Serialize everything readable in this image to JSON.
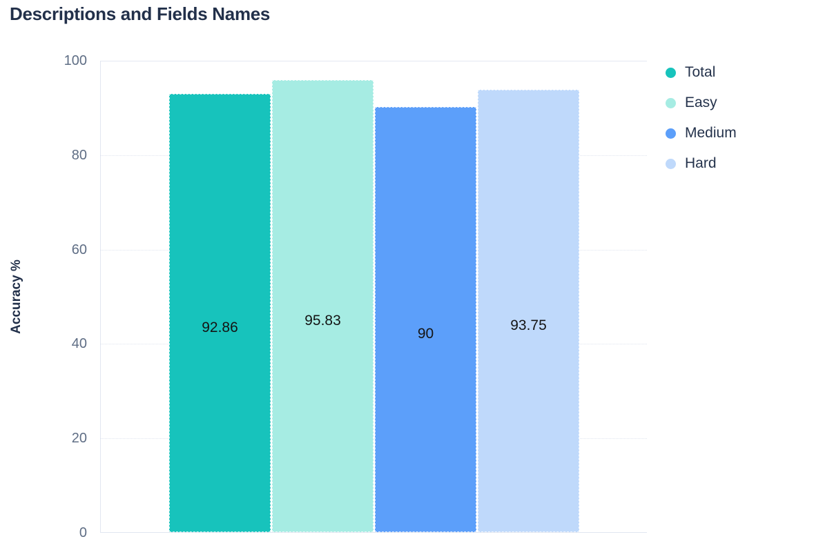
{
  "page_title": "Descriptions and Fields Names",
  "chart_data": {
    "type": "bar",
    "title": "Descriptions and Fields Names",
    "categories": [
      "Total",
      "Easy",
      "Medium",
      "Hard"
    ],
    "values": [
      92.86,
      95.83,
      90,
      93.75
    ],
    "value_labels": [
      "92.86",
      "95.83",
      "90",
      "93.75"
    ],
    "bar_colors": [
      "#17c3bc",
      "#a6ece3",
      "#5c9ffa",
      "#bfd9fb"
    ],
    "xlabel": "",
    "ylabel": "Accuracy %",
    "ylim": [
      0,
      100
    ],
    "yticks": [
      0,
      20,
      40,
      60,
      80,
      100
    ],
    "grid": true,
    "gridline_style": "dotted",
    "legend_position": "right",
    "legend": [
      {
        "label": "Total",
        "color": "#17c3bc"
      },
      {
        "label": "Easy",
        "color": "#a6ece3"
      },
      {
        "label": "Medium",
        "color": "#5c9ffa"
      },
      {
        "label": "Hard",
        "color": "#bfd9fb"
      }
    ]
  }
}
